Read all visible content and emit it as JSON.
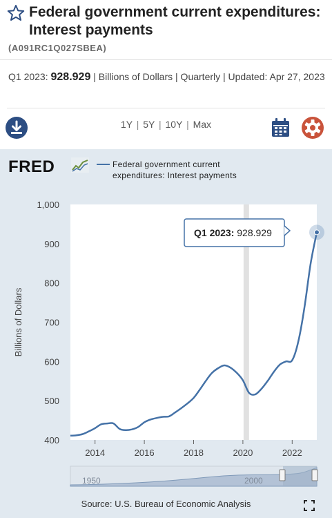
{
  "header": {
    "title": "Federal government current expenditures: Interest payments",
    "series_id": "(A091RC1Q027SBEA)"
  },
  "meta": {
    "period_label": "Q1 2023:",
    "value": "928.929",
    "rest": "| Billions of Dollars | Quarterly | Updated: Apr 27, 2023"
  },
  "toolbar": {
    "ranges": [
      "1Y",
      "5Y",
      "10Y",
      "Max"
    ],
    "download_icon": "download-icon",
    "calendar_icon": "calendar-icon",
    "settings_icon": "gear-icon"
  },
  "chart_header": {
    "logo": "FRED",
    "legend": "Federal government current expenditures: Interest payments"
  },
  "tooltip": {
    "label": "Q1 2023:",
    "value": "928.929"
  },
  "source": "Source: U.S. Bureau of Economic Analysis",
  "navigator": {
    "labels": [
      "1950",
      "2000"
    ]
  },
  "colors": {
    "line": "#4572a7",
    "panel": "#e1e9f0",
    "download": "#2d4e83",
    "gear": "#c9533b",
    "title_star": "#2d4e83"
  },
  "chart_data": {
    "type": "line",
    "title": "",
    "xlabel": "",
    "ylabel": "Billions of Dollars",
    "ylim": [
      400,
      1000
    ],
    "xlim": [
      2013.0,
      2023.0
    ],
    "yticks": [
      400,
      500,
      600,
      700,
      800,
      900,
      "1,000"
    ],
    "xticks": [
      "2014",
      "2016",
      "2018",
      "2020",
      "2022"
    ],
    "recession_band": [
      2020.0,
      2020.25
    ],
    "grid": false,
    "series": [
      {
        "name": "Federal government current expenditures: Interest payments",
        "x": [
          2013.0,
          2013.25,
          2013.5,
          2013.75,
          2014.0,
          2014.25,
          2014.5,
          2014.75,
          2015.0,
          2015.25,
          2015.5,
          2015.75,
          2016.0,
          2016.25,
          2016.5,
          2016.75,
          2017.0,
          2017.25,
          2017.5,
          2017.75,
          2018.0,
          2018.25,
          2018.5,
          2018.75,
          2019.0,
          2019.25,
          2019.5,
          2019.75,
          2020.0,
          2020.25,
          2020.5,
          2020.75,
          2021.0,
          2021.25,
          2021.5,
          2021.75,
          2022.0,
          2022.25,
          2022.5,
          2022.75,
          2023.0
        ],
        "y": [
          411,
          412,
          415,
          422,
          430,
          440,
          442,
          442,
          428,
          425,
          427,
          433,
          445,
          452,
          456,
          459,
          460,
          470,
          481,
          493,
          507,
          528,
          551,
          571,
          583,
          590,
          584,
          571,
          552,
          520,
          516,
          530,
          550,
          573,
          592,
          600,
          603,
          651,
          738,
          850,
          929
        ]
      }
    ]
  }
}
